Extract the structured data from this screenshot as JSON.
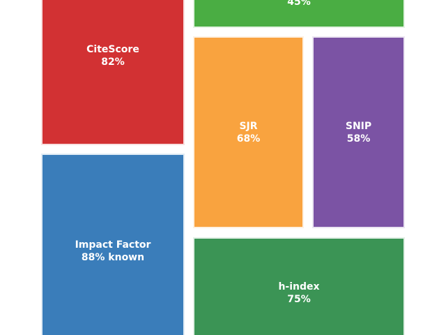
{
  "chart_data": {
    "type": "treemap",
    "title": "",
    "tiles": [
      {
        "key": "top",
        "name": "",
        "value_label": "45%",
        "color": "#4aad43"
      },
      {
        "key": "citescore",
        "name": "CiteScore",
        "value_label": "82%",
        "color": "#d23133"
      },
      {
        "key": "sjr",
        "name": "SJR",
        "value_label": "68%",
        "color": "#f9a33f"
      },
      {
        "key": "snip",
        "name": "SNIP",
        "value_label": "58%",
        "color": "#7b53a4"
      },
      {
        "key": "impact",
        "name": "Impact Factor",
        "value_label": "88% known",
        "color": "#3a7dba"
      },
      {
        "key": "hindex",
        "name": "h-index",
        "value_label": "75%",
        "color": "#3b9455"
      }
    ]
  }
}
